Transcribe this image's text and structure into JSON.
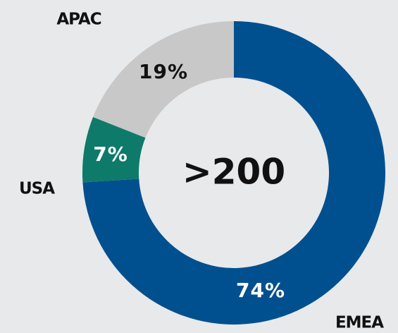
{
  "chart_data": {
    "type": "donut",
    "center_label": ">200",
    "categories": [
      "EMEA",
      "USA",
      "APAC"
    ],
    "values": [
      74,
      7,
      19
    ],
    "value_labels": [
      "74%",
      "7%",
      "19%"
    ],
    "colors": [
      "#00508f",
      "#0e7a6a",
      "#c8c8c8"
    ]
  }
}
